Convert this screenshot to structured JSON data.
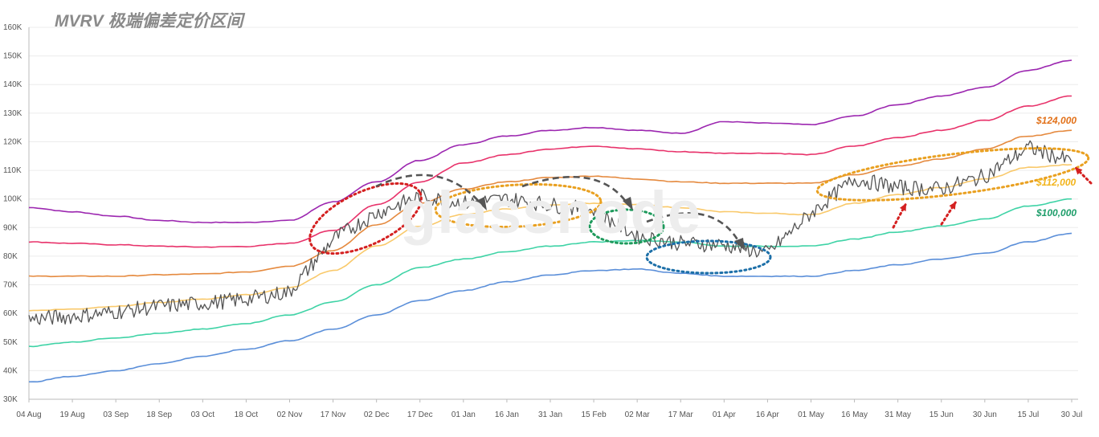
{
  "title": "MVRV 极端偏差定价区间",
  "watermark": "glassnode",
  "annotations": [
    {
      "text": "$124,000",
      "color": "#E2721B"
    },
    {
      "text": "$112,000",
      "color": "#F2B41B"
    },
    {
      "text": "$100,000",
      "color": "#1F9E6B"
    }
  ],
  "chart_data": {
    "type": "line",
    "ylim": [
      30000,
      160000
    ],
    "yticks": [
      "30K",
      "40K",
      "50K",
      "60K",
      "70K",
      "80K",
      "90K",
      "100K",
      "110K",
      "120K",
      "130K",
      "140K",
      "150K",
      "160K"
    ],
    "yticks_values": [
      30000,
      40000,
      50000,
      60000,
      70000,
      80000,
      90000,
      100000,
      110000,
      120000,
      130000,
      140000,
      150000,
      160000
    ],
    "xlabels": [
      "04 Aug",
      "19 Aug",
      "03 Sep",
      "18 Sep",
      "03 Oct",
      "18 Oct",
      "02 Nov",
      "17 Nov",
      "02 Dec",
      "17 Dec",
      "01 Jan",
      "16 Jan",
      "31 Jan",
      "15 Feb",
      "02 Mar",
      "17 Mar",
      "01 Apr",
      "16 Apr",
      "01 May",
      "16 May",
      "31 May",
      "15 Jun",
      "30 Jun",
      "15 Jul",
      "30 Jul"
    ],
    "x": [
      0,
      15,
      30,
      45,
      60,
      75,
      90,
      105,
      120,
      135,
      150,
      165,
      180,
      195,
      210,
      225,
      240,
      255,
      270,
      285,
      300,
      315,
      330,
      345,
      360
    ],
    "series": [
      {
        "color": "#9C27B0",
        "values": [
          97000,
          95500,
          94000,
          92500,
          91800,
          91800,
          92500,
          99000,
          106000,
          113500,
          119000,
          122000,
          124000,
          125000,
          124000,
          123000,
          127000,
          126500,
          126000,
          129000,
          133000,
          136000,
          139000,
          145000,
          148500
        ]
      },
      {
        "color": "#E8336B",
        "values": [
          85000,
          84500,
          84000,
          83500,
          83200,
          83400,
          84500,
          89000,
          98000,
          106000,
          112500,
          115500,
          117500,
          118500,
          117500,
          116500,
          116000,
          116000,
          115500,
          118500,
          121500,
          124000,
          127500,
          132500,
          136000
        ]
      },
      {
        "color": "#E58A3F",
        "values": [
          73000,
          73000,
          73000,
          73500,
          73800,
          74500,
          76500,
          82000,
          91000,
          98500,
          103500,
          106000,
          107500,
          108000,
          107000,
          106000,
          105500,
          105500,
          105500,
          108500,
          111500,
          114000,
          117500,
          122000,
          124000
        ]
      },
      {
        "color": "#F9C96B",
        "values": [
          61000,
          61500,
          62500,
          63800,
          65000,
          66500,
          69000,
          75000,
          83500,
          90500,
          94500,
          96500,
          98000,
          98500,
          98000,
          97000,
          95500,
          95000,
          94500,
          98500,
          101500,
          104000,
          107000,
          111000,
          112000
        ]
      },
      {
        "color": "#3FD3A6",
        "values": [
          48500,
          50000,
          51500,
          53000,
          54500,
          56500,
          59500,
          64000,
          70000,
          76000,
          79000,
          81500,
          83500,
          85000,
          85500,
          85000,
          83500,
          83500,
          83500,
          86000,
          88500,
          90500,
          93000,
          97500,
          100000
        ]
      },
      {
        "color": "#5B8FD9",
        "values": [
          36000,
          38000,
          40000,
          42500,
          45000,
          47500,
          50500,
          54500,
          59500,
          64500,
          68000,
          71000,
          73500,
          75000,
          75500,
          74000,
          73000,
          73000,
          73000,
          75000,
          77000,
          79000,
          81000,
          85000,
          88000
        ]
      },
      {
        "color": "#555555",
        "values": [
          58000,
          59000,
          60500,
          62500,
          63500,
          65000,
          67500,
          86000,
          95000,
          101000,
          98500,
          100000,
          98000,
          96000,
          87000,
          84500,
          84000,
          81000,
          95000,
          107000,
          104000,
          103500,
          108000,
          118000,
          113000
        ]
      }
    ]
  }
}
